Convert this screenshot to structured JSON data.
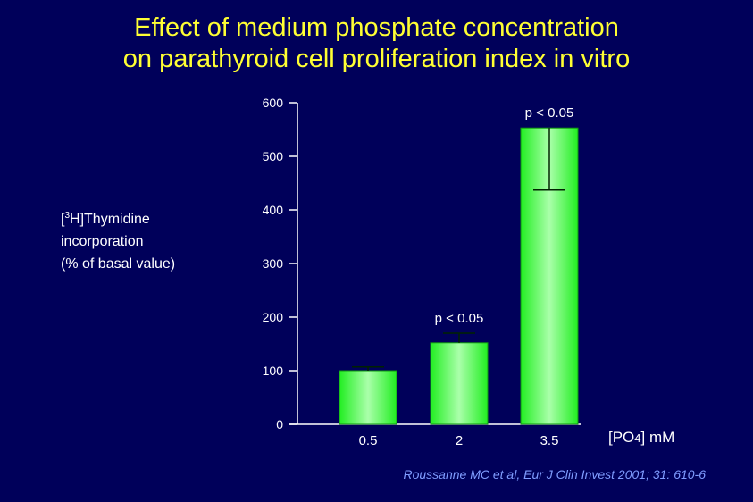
{
  "chart_data": {
    "type": "bar",
    "title_lines": [
      "Effect of medium phosphate concentration",
      "on parathyroid cell proliferation index in vitro"
    ],
    "ylabel_lines": [
      "Thymidine",
      "incorporation",
      "(% of basal value)"
    ],
    "ylabel_prefix": "[",
    "ylabel_sup": "3",
    "ylabel_mid": "H]",
    "xlabel_main": "[PO",
    "xlabel_sub": "4",
    "xlabel_unit": "] mM",
    "categories": [
      "0.5",
      "2",
      "3.5"
    ],
    "values": [
      100,
      152,
      553
    ],
    "error_upper": [
      107,
      170,
      553
    ],
    "error_lower": [
      100,
      152,
      437
    ],
    "annotations": [
      "",
      "p < 0.05",
      "p < 0.05"
    ],
    "ylim": [
      0,
      600
    ],
    "yticks": [
      0,
      100,
      200,
      300,
      400,
      500,
      600
    ],
    "grid": false,
    "bar_color": "#33ff33"
  },
  "citation": "Roussanne MC et al, Eur J Clin Invest 2001; 31: 610-6"
}
